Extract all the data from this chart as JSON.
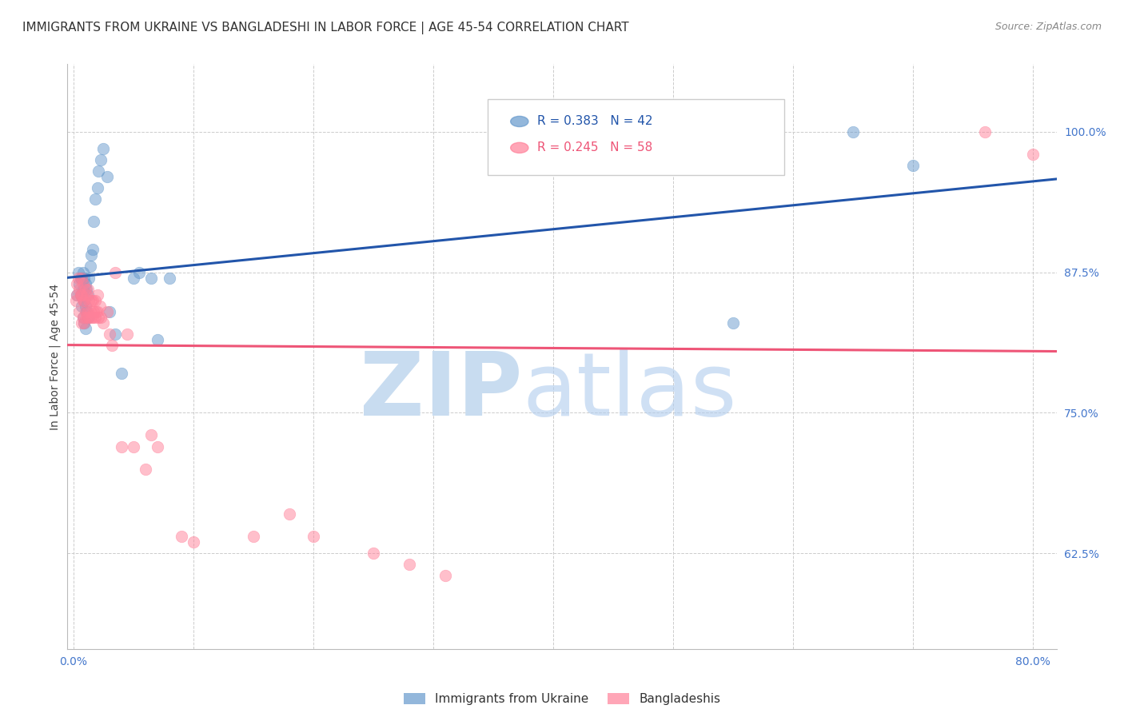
{
  "title": "IMMIGRANTS FROM UKRAINE VS BANGLADESHI IN LABOR FORCE | AGE 45-54 CORRELATION CHART",
  "source": "Source: ZipAtlas.com",
  "ylabel": "In Labor Force | Age 45-54",
  "legend_ukraine_r": "R = 0.383",
  "legend_ukraine_n": "N = 42",
  "legend_bangla_r": "R = 0.245",
  "legend_bangla_n": "N = 58",
  "legend_ukraine_label": "Immigrants from Ukraine",
  "legend_bangla_label": "Bangladeshis",
  "ukraine_color": "#6699CC",
  "bangla_color": "#FF8099",
  "ukraine_line_color": "#2255AA",
  "bangla_line_color": "#EE5577",
  "xlim": [
    -0.005,
    0.82
  ],
  "ylim": [
    0.54,
    1.06
  ],
  "x_tick_positions": [
    0.0,
    0.1,
    0.2,
    0.3,
    0.4,
    0.5,
    0.6,
    0.7,
    0.8
  ],
  "x_tick_labels": [
    "0.0%",
    "",
    "",
    "",
    "",
    "",
    "",
    "",
    "80.0%"
  ],
  "y_tick_positions": [
    0.625,
    0.75,
    0.875,
    1.0
  ],
  "y_tick_labels": [
    "62.5%",
    "75.0%",
    "87.5%",
    "100.0%"
  ],
  "ukraine_x": [
    0.003,
    0.004,
    0.005,
    0.006,
    0.006,
    0.007,
    0.007,
    0.008,
    0.008,
    0.008,
    0.009,
    0.009,
    0.009,
    0.01,
    0.01,
    0.01,
    0.011,
    0.011,
    0.012,
    0.012,
    0.013,
    0.014,
    0.015,
    0.016,
    0.017,
    0.018,
    0.02,
    0.021,
    0.023,
    0.025,
    0.028,
    0.03,
    0.035,
    0.04,
    0.05,
    0.055,
    0.065,
    0.07,
    0.08,
    0.55,
    0.65,
    0.7
  ],
  "ukraine_y": [
    0.855,
    0.875,
    0.865,
    0.855,
    0.87,
    0.845,
    0.87,
    0.835,
    0.86,
    0.875,
    0.83,
    0.85,
    0.87,
    0.825,
    0.845,
    0.865,
    0.84,
    0.86,
    0.835,
    0.855,
    0.87,
    0.88,
    0.89,
    0.895,
    0.92,
    0.94,
    0.95,
    0.965,
    0.975,
    0.985,
    0.96,
    0.84,
    0.82,
    0.785,
    0.87,
    0.875,
    0.87,
    0.815,
    0.87,
    0.83,
    1.0,
    0.97
  ],
  "bangla_x": [
    0.002,
    0.003,
    0.003,
    0.004,
    0.005,
    0.005,
    0.006,
    0.007,
    0.007,
    0.007,
    0.008,
    0.008,
    0.008,
    0.009,
    0.009,
    0.01,
    0.01,
    0.011,
    0.011,
    0.012,
    0.012,
    0.013,
    0.013,
    0.014,
    0.015,
    0.015,
    0.016,
    0.016,
    0.017,
    0.018,
    0.018,
    0.019,
    0.02,
    0.02,
    0.021,
    0.022,
    0.023,
    0.025,
    0.028,
    0.03,
    0.032,
    0.035,
    0.04,
    0.045,
    0.05,
    0.06,
    0.065,
    0.07,
    0.09,
    0.1,
    0.15,
    0.18,
    0.2,
    0.25,
    0.28,
    0.31,
    0.76,
    0.8
  ],
  "bangla_y": [
    0.85,
    0.855,
    0.865,
    0.87,
    0.84,
    0.86,
    0.855,
    0.83,
    0.855,
    0.87,
    0.835,
    0.85,
    0.865,
    0.83,
    0.85,
    0.84,
    0.86,
    0.835,
    0.855,
    0.84,
    0.86,
    0.835,
    0.85,
    0.84,
    0.835,
    0.85,
    0.835,
    0.85,
    0.84,
    0.835,
    0.85,
    0.84,
    0.84,
    0.855,
    0.835,
    0.845,
    0.835,
    0.83,
    0.84,
    0.82,
    0.81,
    0.875,
    0.72,
    0.82,
    0.72,
    0.7,
    0.73,
    0.72,
    0.64,
    0.635,
    0.64,
    0.66,
    0.64,
    0.625,
    0.615,
    0.605,
    1.0,
    0.98
  ],
  "background_color": "#FFFFFF",
  "grid_color": "#CCCCCC",
  "title_color": "#333333",
  "tick_color": "#4477CC",
  "title_fontsize": 11,
  "source_fontsize": 9,
  "axis_label_fontsize": 10,
  "tick_fontsize": 10,
  "legend_fontsize": 11
}
